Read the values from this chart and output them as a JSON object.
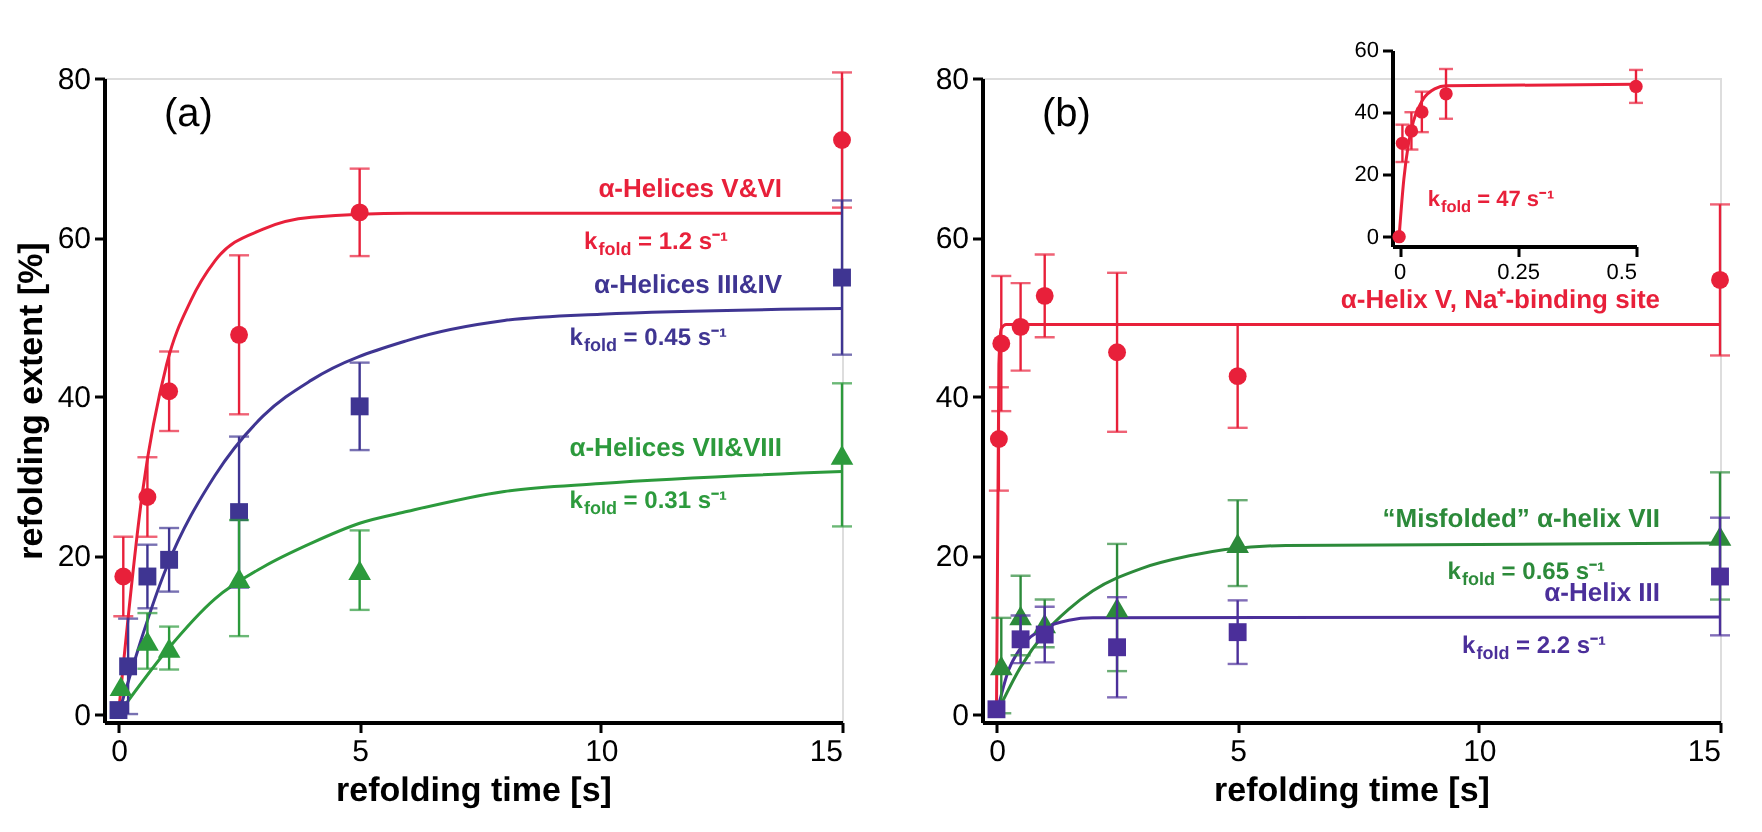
{
  "chart_data": [
    {
      "type": "scatter",
      "title": "(a)",
      "xlabel": "refolding time [s]",
      "ylabel": "refolding extent [%]",
      "xlim": [
        -0.3,
        15
      ],
      "ylim": [
        -1,
        80
      ],
      "xticks": [
        0,
        5,
        10,
        15
      ],
      "yticks": [
        0,
        20,
        40,
        60,
        80
      ],
      "annotations": [
        "k$_{fold}$ = 1.2 s⁻¹",
        "k$_{fold}$ = 0.45 s⁻¹",
        "k$_{fold}$ = 0.31 s⁻¹"
      ],
      "series": [
        {
          "type": "line",
          "name": "α-Helices V&VI",
          "color": "#e8203a",
          "marker": "none",
          "line_style": "solid",
          "x": [
            0,
            0.5,
            1,
            1.5,
            2,
            3,
            4,
            6,
            15
          ],
          "values": [
            0,
            28,
            44,
            52,
            57,
            61,
            62.5,
            63,
            63
          ]
        },
        {
          "type": "line",
          "name": "α-Helices III&IV",
          "color": "#3f3592",
          "marker": "none",
          "line_style": "solid",
          "x": [
            0,
            1,
            2,
            3,
            4,
            6,
            8,
            10,
            15
          ],
          "values": [
            0,
            18.5,
            30,
            37.5,
            42,
            47,
            49.5,
            50.3,
            51
          ]
        },
        {
          "type": "line",
          "name": "α-Helices VII&VIII",
          "color": "#2c9a3c",
          "marker": "none",
          "line_style": "solid",
          "x": [
            0,
            1,
            2,
            3,
            4,
            5,
            6,
            8,
            10,
            15
          ],
          "values": [
            0,
            8,
            14.5,
            18.5,
            21.5,
            24,
            25.5,
            28,
            29,
            30.5
          ]
        },
        {
          "color": "#e8203a",
          "marker": "circle",
          "x": [
            0.1,
            0.6,
            1.05,
            2.5,
            5,
            15
          ],
          "values": [
            17.3,
            27.3,
            40.6,
            47.7,
            63.1,
            72.2
          ],
          "errors": [
            5,
            5,
            5,
            10,
            5.5,
            8.5
          ]
        },
        {
          "color": "#3f3592",
          "marker": "square",
          "x": [
            0,
            0.2,
            0.6,
            1.05,
            2.5,
            5,
            15
          ],
          "values": [
            0.5,
            6,
            17.3,
            19.4,
            25.4,
            38.7,
            54.9
          ],
          "errors": [
            null,
            6,
            4,
            4,
            9.5,
            5.5,
            9.7
          ]
        },
        {
          "color": "#2c9a3c",
          "marker": "triangle",
          "x": [
            0.05,
            0.6,
            1.05,
            2.5,
            5,
            15
          ],
          "values": [
            3.5,
            9.2,
            8.3,
            17.1,
            18.1,
            32.6
          ],
          "errors": [
            null,
            3.5,
            2.7,
            7.3,
            5,
            9
          ]
        }
      ]
    },
    {
      "type": "scatter",
      "title": "(b)",
      "xlabel": "refolding time [s]",
      "xlim": [
        -0.3,
        15
      ],
      "ylim": [
        -1,
        80
      ],
      "xticks": [
        0,
        5,
        10,
        15
      ],
      "yticks": [
        0,
        20,
        40,
        60,
        80
      ],
      "annotations": [
        "k$_{fold}$ = 0.65 s⁻¹",
        "k$_{fold}$ = 2.2 s⁻¹"
      ],
      "series": [
        {
          "type": "line",
          "name": "α-Helix V, Na⁺-binding site",
          "color": "#e8203a",
          "marker": "none",
          "line_style": "solid",
          "x": [
            0,
            0.05,
            0.1,
            0.2,
            15
          ],
          "values": [
            0,
            44,
            48.5,
            49,
            49
          ]
        },
        {
          "type": "line",
          "name": "“Misfolded” α-helix VII",
          "color": "#2c8a3a",
          "marker": "none",
          "line_style": "solid",
          "x": [
            0,
            0.5,
            1,
            1.5,
            2,
            3,
            4,
            6,
            15
          ],
          "values": [
            0,
            5.9,
            10.2,
            13.2,
            15.5,
            18.3,
            19.9,
            21.2,
            21.5
          ]
        },
        {
          "type": "line",
          "name": "α-Helix III",
          "color": "#4b2f9a",
          "marker": "none",
          "line_style": "solid",
          "x": [
            0,
            0.25,
            0.5,
            1,
            1.5,
            2,
            15
          ],
          "values": [
            0,
            5.5,
            8.3,
            10.8,
            11.8,
            12.1,
            12.2
          ]
        },
        {
          "color": "#e8203a",
          "marker": "circle",
          "x": [
            0.05,
            0.1,
            0.5,
            1,
            2.5,
            5,
            15
          ],
          "values": [
            34.6,
            46.6,
            48.7,
            52.6,
            45.5,
            42.5,
            54.6
          ],
          "errors": [
            6.5,
            8.5,
            5.5,
            5.2,
            10,
            6.5,
            9.5
          ]
        },
        {
          "color": "#2c8a3a",
          "marker": "triangle",
          "x": [
            0.1,
            0.5,
            1,
            2.5,
            5,
            15
          ],
          "values": [
            6.1,
            12.4,
            11.4,
            13.4,
            21.5,
            22.4
          ],
          "errors": [
            6,
            5,
            3,
            8,
            5.4,
            8
          ]
        },
        {
          "color": "#4b2f9a",
          "marker": "square",
          "x": [
            0,
            0.5,
            1,
            2.5,
            5,
            15
          ],
          "values": [
            0.6,
            9.4,
            10,
            8.4,
            10.3,
            17.3
          ],
          "errors": [
            null,
            3,
            3.5,
            6.3,
            4,
            7.4
          ]
        }
      ]
    },
    {
      "type": "scatter",
      "xlim": [
        -0.015,
        0.5
      ],
      "ylim": [
        -3,
        60
      ],
      "xticks": [
        0,
        0.25,
        0.5
      ],
      "yticks": [
        0,
        20,
        40,
        60
      ],
      "annotations": [
        "k$_{fold}$ = 47 s⁻¹"
      ],
      "series": [
        {
          "type": "line",
          "color": "#e8203a",
          "marker": "none",
          "line_style": "solid",
          "x": [
            0,
            0.01,
            0.02,
            0.03,
            0.05,
            0.075,
            0.1,
            0.5
          ],
          "values": [
            0,
            18.5,
            30,
            37,
            44,
            47.5,
            48.5,
            49
          ]
        },
        {
          "color": "#e8203a",
          "marker": "circle",
          "x": [
            0,
            0.007,
            0.026,
            0.048,
            0.099,
            0.5
          ],
          "values": [
            0,
            30,
            34,
            40.1,
            45.9,
            48.3
          ],
          "errors": [
            null,
            6,
            6,
            6.5,
            8,
            5.3
          ]
        }
      ]
    }
  ]
}
